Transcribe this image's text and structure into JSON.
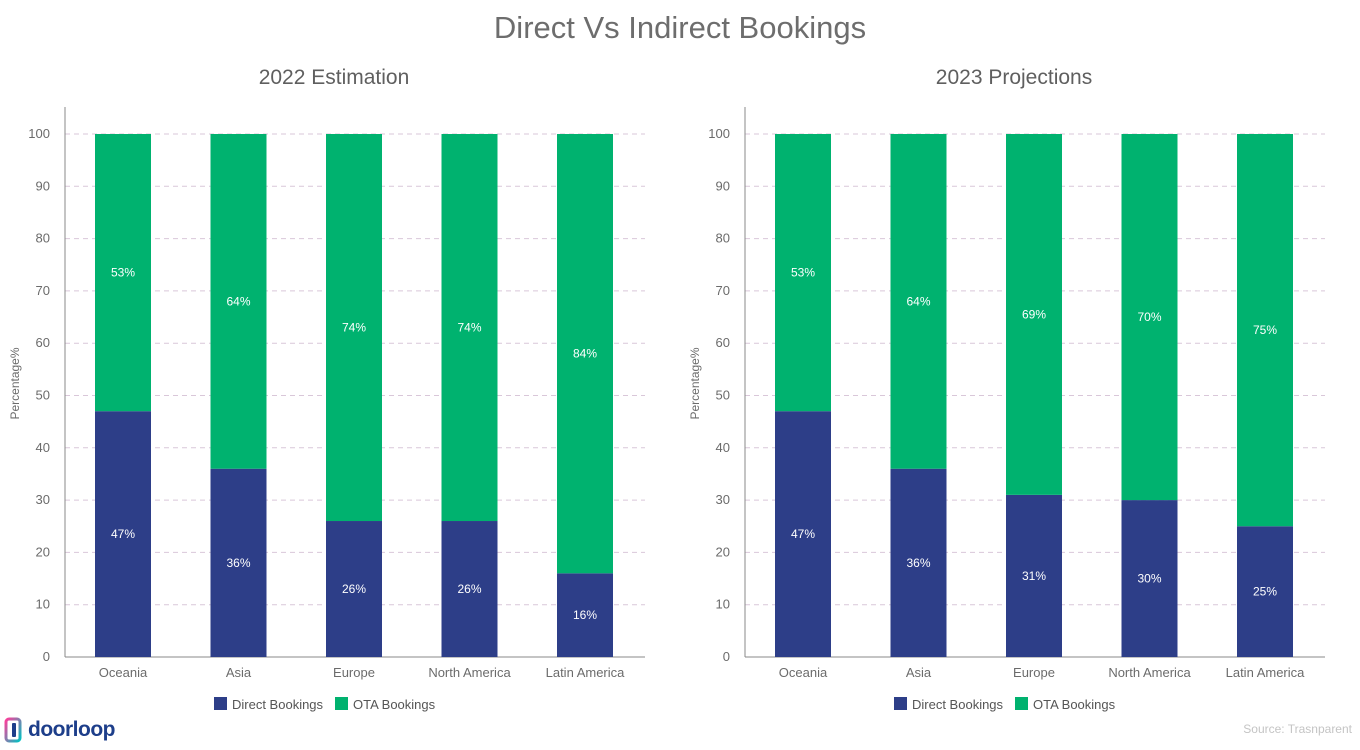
{
  "title": "Direct Vs Indirect Bookings",
  "brand": {
    "name": "doorloop",
    "icon": "doorloop-logo-icon"
  },
  "source": "Source: Trasnparent",
  "colors": {
    "direct": "#2d3e88",
    "ota": "#00b26f",
    "grid": "#d9c7d9",
    "axis": "#888888"
  },
  "chart_data": [
    {
      "type": "bar",
      "stacked": true,
      "title": "2022 Estimation",
      "xlabel": "",
      "ylabel": "Percentage%",
      "ylim": [
        0,
        100
      ],
      "yticks": [
        0,
        10,
        20,
        30,
        40,
        50,
        60,
        70,
        80,
        90,
        100
      ],
      "grid": true,
      "legend": "bottom-center",
      "categories": [
        "Oceania",
        "Asia",
        "Europe",
        "North America",
        "Latin America"
      ],
      "series": [
        {
          "name": "Direct Bookings",
          "values": [
            47,
            36,
            26,
            26,
            16
          ],
          "labels": [
            "47%",
            "36%",
            "26%",
            "26%",
            "16%"
          ]
        },
        {
          "name": "OTA Bookings",
          "values": [
            53,
            64,
            74,
            74,
            84
          ],
          "labels": [
            "53%",
            "64%",
            "74%",
            "74%",
            "84%"
          ]
        }
      ]
    },
    {
      "type": "bar",
      "stacked": true,
      "title": "2023 Projections",
      "xlabel": "",
      "ylabel": "Percentage%",
      "ylim": [
        0,
        100
      ],
      "yticks": [
        0,
        10,
        20,
        30,
        40,
        50,
        60,
        70,
        80,
        90,
        100
      ],
      "grid": true,
      "legend": "bottom-center",
      "categories": [
        "Oceania",
        "Asia",
        "Europe",
        "North America",
        "Latin America"
      ],
      "series": [
        {
          "name": "Direct Bookings",
          "values": [
            47,
            36,
            31,
            30,
            25
          ],
          "labels": [
            "47%",
            "36%",
            "31%",
            "30%",
            "25%"
          ]
        },
        {
          "name": "OTA Bookings",
          "values": [
            53,
            64,
            69,
            70,
            75
          ],
          "labels": [
            "53%",
            "64%",
            "69%",
            "70%",
            "75%"
          ]
        }
      ]
    }
  ]
}
